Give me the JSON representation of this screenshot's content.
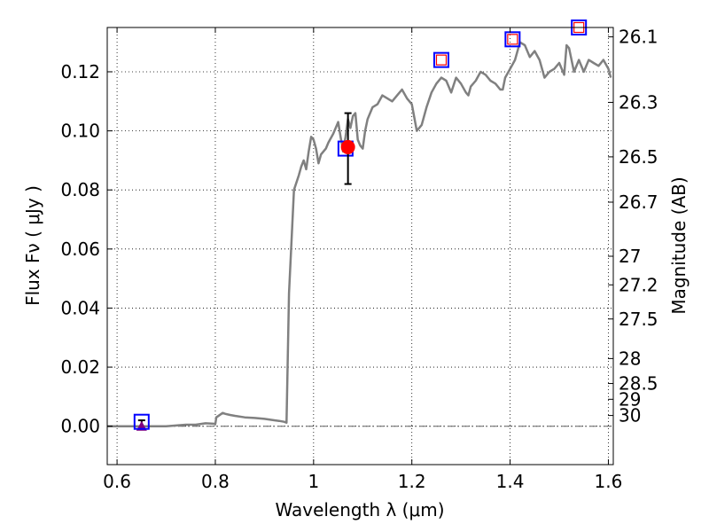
{
  "chart_data": {
    "type": "line",
    "xlabel": "Wavelength  λ (μm)",
    "ylabel": "Flux  Fν  ( μJy )",
    "ylabel_right": "Magnitude (AB)",
    "xlim": [
      0.58,
      1.61
    ],
    "ylim": [
      -0.013,
      0.135
    ],
    "grid": true,
    "x_ticks": [
      0.6,
      0.8,
      1.0,
      1.2,
      1.4,
      1.6
    ],
    "x_tick_labels": [
      "0.6",
      "0.8",
      "1",
      "1.2",
      "1.4",
      "1.6"
    ],
    "y_ticks": [
      0.0,
      0.02,
      0.04,
      0.06,
      0.08,
      0.1,
      0.12
    ],
    "y_tick_labels": [
      "0.00",
      "0.02",
      "0.04",
      "0.06",
      "0.08",
      "0.10",
      "0.12"
    ],
    "right_ticks": [
      26.1,
      26.3,
      26.5,
      26.7,
      27,
      27.2,
      27.5,
      28,
      28.5,
      29,
      30
    ],
    "right_tick_labels": [
      "26.1",
      "26.3",
      "26.5",
      "26.7",
      "27",
      "27.2",
      "27.5",
      "28",
      "28.5",
      "29",
      "30"
    ],
    "model_spectrum": {
      "color": "#808080",
      "x": [
        0.58,
        0.62,
        0.66,
        0.7,
        0.74,
        0.76,
        0.78,
        0.8,
        0.802,
        0.815,
        0.82,
        0.83,
        0.84,
        0.86,
        0.88,
        0.9,
        0.92,
        0.93,
        0.94,
        0.945,
        0.95,
        0.96,
        0.97,
        0.975,
        0.98,
        0.985,
        0.99,
        0.995,
        1.0,
        1.005,
        1.01,
        1.015,
        1.02,
        1.025,
        1.03,
        1.04,
        1.05,
        1.055,
        1.06,
        1.065,
        1.07,
        1.075,
        1.08,
        1.085,
        1.09,
        1.095,
        1.1,
        1.105,
        1.11,
        1.12,
        1.13,
        1.14,
        1.15,
        1.16,
        1.17,
        1.18,
        1.19,
        1.2,
        1.21,
        1.215,
        1.22,
        1.23,
        1.24,
        1.25,
        1.26,
        1.27,
        1.28,
        1.29,
        1.3,
        1.31,
        1.315,
        1.32,
        1.33,
        1.34,
        1.35,
        1.36,
        1.37,
        1.38,
        1.385,
        1.39,
        1.4,
        1.41,
        1.42,
        1.43,
        1.44,
        1.45,
        1.46,
        1.47,
        1.48,
        1.49,
        1.5,
        1.505,
        1.51,
        1.515,
        1.52,
        1.53,
        1.54,
        1.55,
        1.56,
        1.57,
        1.58,
        1.59,
        1.6,
        1.605
      ],
      "y": [
        0.0,
        0.0,
        0.0,
        0.0,
        0.0005,
        0.0005,
        0.001,
        0.0008,
        0.003,
        0.0045,
        0.0042,
        0.0038,
        0.0035,
        0.003,
        0.0028,
        0.0025,
        0.002,
        0.0018,
        0.0015,
        0.0012,
        0.045,
        0.08,
        0.085,
        0.088,
        0.09,
        0.087,
        0.093,
        0.098,
        0.097,
        0.094,
        0.089,
        0.092,
        0.093,
        0.094,
        0.096,
        0.099,
        0.103,
        0.098,
        0.093,
        0.098,
        0.104,
        0.101,
        0.105,
        0.106,
        0.097,
        0.095,
        0.094,
        0.1,
        0.104,
        0.108,
        0.109,
        0.112,
        0.111,
        0.11,
        0.112,
        0.114,
        0.111,
        0.109,
        0.1,
        0.101,
        0.102,
        0.108,
        0.113,
        0.116,
        0.118,
        0.117,
        0.113,
        0.118,
        0.116,
        0.113,
        0.112,
        0.115,
        0.117,
        0.12,
        0.119,
        0.117,
        0.116,
        0.114,
        0.114,
        0.118,
        0.121,
        0.124,
        0.13,
        0.129,
        0.125,
        0.127,
        0.124,
        0.118,
        0.12,
        0.121,
        0.123,
        0.121,
        0.119,
        0.129,
        0.128,
        0.12,
        0.124,
        0.12,
        0.124,
        0.123,
        0.122,
        0.124,
        0.121,
        0.118
      ]
    },
    "zero_line": {
      "y": 0.0,
      "color": "#606060"
    },
    "model_points": {
      "color": "#0000ff",
      "x": [
        0.65,
        1.065,
        1.26,
        1.405,
        1.54
      ],
      "y": [
        0.0015,
        0.094,
        0.124,
        0.131,
        0.135
      ]
    },
    "observed_points": {
      "color": "#ff0000",
      "x": [
        1.07
      ],
      "y": [
        0.0945
      ],
      "err_low": [
        0.082
      ],
      "err_high": [
        0.106
      ]
    },
    "open_squares": {
      "color": "#ff0000",
      "x": [
        1.26,
        1.405,
        1.54
      ],
      "y": [
        0.124,
        0.131,
        0.135
      ]
    },
    "upper_limit": {
      "color": "#800080",
      "x": [
        0.65
      ],
      "y": [
        0.0
      ],
      "err_high": [
        0.002
      ]
    }
  }
}
